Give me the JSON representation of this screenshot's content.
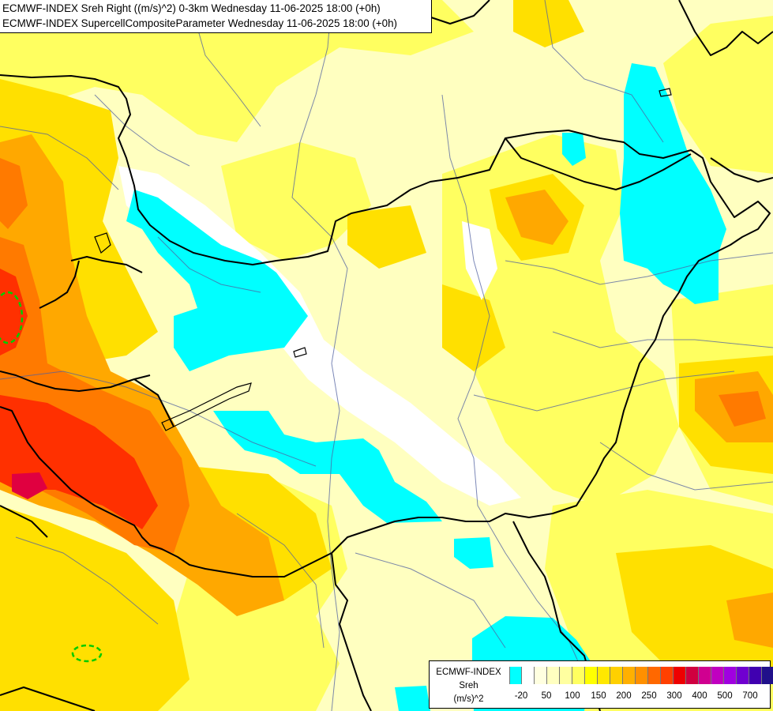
{
  "header": {
    "line1": "ECMWF-INDEX Sreh Right ((m/s)^2) 0-3km Wednesday 11-06-2025 18:00 (+0h)",
    "line2": "ECMWF-INDEX SupercellCompositeParameter Wednesday 11-06-2025 18:00 (+0h)"
  },
  "legend": {
    "title1": "ECMWF-INDEX",
    "title2": "Sreh",
    "title3": "(m/s)^2",
    "colors": [
      "#00ffff",
      "#ffffff",
      "#ffffe0",
      "#ffffc0",
      "#ffffa0",
      "#ffff60",
      "#ffff00",
      "#ffe800",
      "#ffd000",
      "#ffb000",
      "#ff9000",
      "#ff6800",
      "#ff4000",
      "#ee0000",
      "#d00040",
      "#d00090",
      "#c000c0",
      "#a000e0",
      "#7000d0",
      "#4000b0",
      "#20108a",
      "#000070"
    ],
    "ticks": [
      "-20",
      "50",
      "100",
      "150",
      "200",
      "250",
      "300",
      "400",
      "500",
      "700"
    ]
  },
  "colors": {
    "cyan": "#00ffff",
    "paleYellow": "#ffffc0",
    "yellow": "#ffff60",
    "gold": "#ffe200",
    "orange": "#ffa800",
    "darkOrange": "#ff7a00",
    "red": "#ff3000",
    "magentaRed": "#e00040",
    "supercellContour": "#00cc00"
  }
}
